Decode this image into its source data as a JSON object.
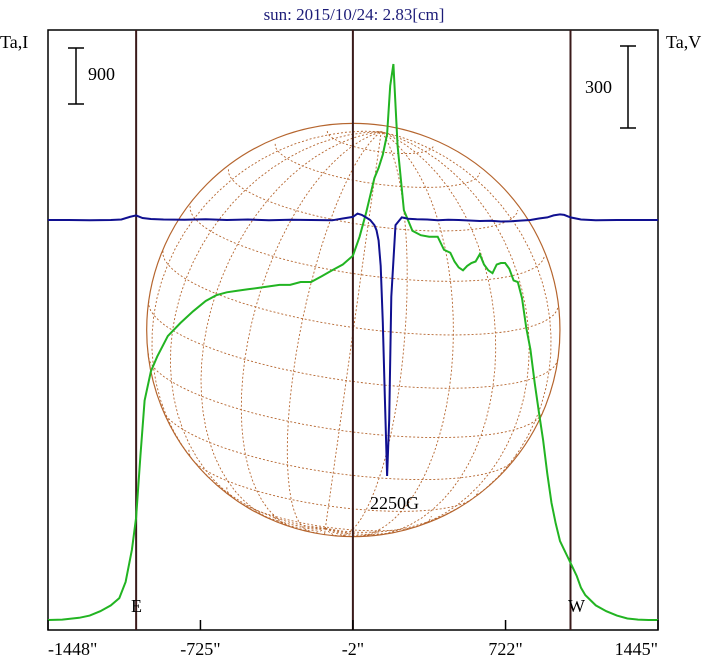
{
  "chart_data": {
    "type": "line",
    "title": "sun: 2015/10/24: 2.83[cm]",
    "left_axis_label": "Ta,I",
    "right_axis_label": "Ta,V",
    "x_ticks": [
      -1448,
      -725,
      -2,
      722,
      1445
    ],
    "x_tick_labels": [
      "-1448\"",
      "-725\"",
      "-2\"",
      "722\"",
      "1445\""
    ],
    "xlim": [
      -1448,
      1445
    ],
    "vertical_lines_x": [
      -1030,
      -2,
      1030
    ],
    "scale_bars": {
      "left_I": "900",
      "right_V": "300"
    },
    "limb_labels": {
      "east": "E",
      "west": "W"
    },
    "annotation": {
      "text": "2250G",
      "x": 160
    },
    "solar_disk": {
      "radius_arcsec": 980,
      "color": "#b5652e"
    },
    "series": [
      {
        "name": "Ta,I",
        "color": "#22b422",
        "x": [
          -1448,
          -1380,
          -1300,
          -1250,
          -1200,
          -1150,
          -1110,
          -1080,
          -1050,
          -1030,
          -1010,
          -990,
          -960,
          -930,
          -880,
          -820,
          -760,
          -700,
          -650,
          -600,
          -550,
          -500,
          -450,
          -400,
          -350,
          -300,
          -250,
          -200,
          -150,
          -100,
          -50,
          -2,
          30,
          60,
          80,
          100,
          120,
          140,
          160,
          175,
          190,
          210,
          240,
          280,
          320,
          360,
          400,
          430,
          460,
          480,
          500,
          520,
          540,
          560,
          580,
          600,
          620,
          640,
          660,
          680,
          700,
          720,
          740,
          760,
          780,
          800,
          820,
          840,
          860,
          880,
          900,
          920,
          940,
          960,
          980,
          1000,
          1020,
          1040,
          1060,
          1080,
          1100,
          1150,
          1200,
          1250,
          1300,
          1350,
          1400,
          1445
        ],
        "y": [
          0,
          3,
          15,
          30,
          60,
          100,
          150,
          260,
          480,
          700,
          1120,
          1500,
          1700,
          1800,
          1940,
          2030,
          2110,
          2180,
          2220,
          2240,
          2250,
          2260,
          2270,
          2280,
          2290,
          2290,
          2310,
          2310,
          2350,
          2390,
          2430,
          2490,
          2620,
          2780,
          2900,
          3020,
          3090,
          3180,
          3320,
          3650,
          3800,
          3240,
          2800,
          2660,
          2630,
          2620,
          2620,
          2530,
          2510,
          2450,
          2410,
          2390,
          2420,
          2440,
          2450,
          2500,
          2430,
          2390,
          2370,
          2430,
          2440,
          2440,
          2400,
          2320,
          2310,
          2200,
          2000,
          1850,
          1620,
          1420,
          1230,
          1000,
          800,
          660,
          540,
          480,
          420,
          360,
          300,
          220,
          170,
          100,
          60,
          30,
          10,
          3,
          0,
          0
        ],
        "values_unit": "K"
      },
      {
        "name": "Ta,V",
        "color": "#101090",
        "x": [
          -1448,
          -1350,
          -1250,
          -1150,
          -1100,
          -1060,
          -1030,
          -1000,
          -960,
          -900,
          -800,
          -700,
          -600,
          -500,
          -400,
          -300,
          -200,
          -100,
          -50,
          -2,
          20,
          40,
          60,
          80,
          100,
          110,
          120,
          130,
          140,
          150,
          160,
          170,
          180,
          200,
          230,
          260,
          300,
          350,
          400,
          450,
          500,
          550,
          600,
          650,
          700,
          750,
          800,
          840,
          880,
          920,
          950,
          980,
          1000,
          1030,
          1080,
          1150,
          1250,
          1350,
          1445
        ],
        "y": [
          0,
          0,
          -1,
          0,
          2,
          12,
          18,
          8,
          4,
          2,
          1,
          3,
          0,
          2,
          -1,
          1,
          0,
          -1,
          6,
          12,
          25,
          20,
          10,
          0,
          -20,
          -40,
          -80,
          -180,
          -400,
          -700,
          -1000,
          -780,
          -300,
          -20,
          10,
          5,
          3,
          2,
          -1,
          1,
          0,
          -2,
          -4,
          -3,
          -6,
          -5,
          -2,
          0,
          6,
          10,
          18,
          22,
          20,
          10,
          2,
          -1,
          0,
          0,
          0
        ],
        "values_unit": "K"
      }
    ],
    "ylim_I": [
      0,
      3800
    ],
    "ylim_V": [
      -1000,
      1000
    ]
  }
}
